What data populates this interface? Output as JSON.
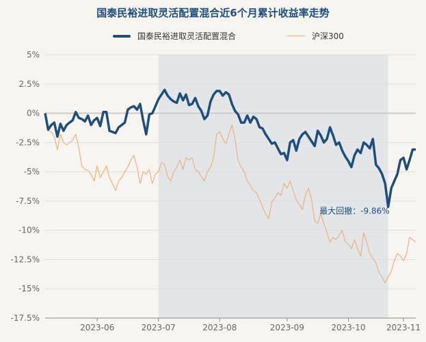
{
  "chart_data": {
    "type": "line",
    "title": "国泰民裕进取灵活配置混合近6个月累计收益率走势",
    "xlabel": "",
    "ylabel": "",
    "ylim": [
      -17.5,
      5
    ],
    "y_ticks": [
      "5%",
      "2.5%",
      "0%",
      "-2.5%",
      "-5%",
      "-7.5%",
      "-10%",
      "-12.5%",
      "-15%",
      "-17.5%"
    ],
    "y_tick_values": [
      5,
      2.5,
      0,
      -2.5,
      -5,
      -7.5,
      -10,
      -12.5,
      -15,
      -17.5
    ],
    "x_ticks": [
      "2023-06",
      "2023-07",
      "2023-08",
      "2023-09",
      "2023-10",
      "2023-11"
    ],
    "x_tick_index": [
      17,
      37,
      57,
      79,
      99,
      117
    ],
    "grid": true,
    "legend_position": "top",
    "series": [
      {
        "name": "国泰民裕进取灵活配置混合",
        "color": "#1f4e79",
        "values": [
          0.0,
          -1.4,
          -1.0,
          -0.8,
          -2.0,
          -0.9,
          -1.5,
          -1.0,
          -0.8,
          -0.6,
          0.1,
          -0.4,
          -0.5,
          -0.7,
          -0.2,
          -1.0,
          -0.6,
          -0.4,
          -1.1,
          0.1,
          0.1,
          -1.5,
          -1.6,
          -1.7,
          -1.2,
          -1.0,
          -0.8,
          0.3,
          0.5,
          0.6,
          0.3,
          0.8,
          -0.6,
          -1.8,
          -0.1,
          0.0,
          0.6,
          1.2,
          1.6,
          2.0,
          1.5,
          1.2,
          1.0,
          0.9,
          1.7,
          1.1,
          1.6,
          0.7,
          0.8,
          1.3,
          0.6,
          0.2,
          -0.5,
          -0.2,
          1.0,
          1.6,
          1.9,
          1.9,
          1.5,
          1.8,
          1.6,
          0.8,
          0.2,
          -0.1,
          -0.8,
          -0.8,
          -0.2,
          -0.8,
          -0.3,
          -0.5,
          -1.2,
          -1.3,
          -1.8,
          -2.2,
          -2.6,
          -2.5,
          -3.0,
          -3.5,
          -3.4,
          -4.0,
          -2.5,
          -2.3,
          -3.2,
          -2.2,
          -1.8,
          -1.6,
          -2.0,
          -2.4,
          -2.8,
          -1.5,
          -1.9,
          -2.5,
          -2.2,
          -1.2,
          -1.9,
          -2.7,
          -2.5,
          -3.2,
          -3.7,
          -4.1,
          -4.6,
          -3.6,
          -3.1,
          -3.4,
          -2.5,
          -2.7,
          -3.0,
          -2.2,
          -4.4,
          -4.7,
          -5.2,
          -6.0,
          -8.0,
          -6.4,
          -5.8,
          -5.2,
          -4.0,
          -3.8,
          -4.8,
          -4.0,
          -3.1,
          -3.1
        ]
      },
      {
        "name": "沪深300",
        "color": "#e8b182",
        "values": [
          0.0,
          -1.5,
          -1.6,
          -2.0,
          -3.1,
          -1.8,
          -2.5,
          -2.7,
          -2.5,
          -2.3,
          -1.8,
          -3.0,
          -4.5,
          -4.8,
          -4.9,
          -5.2,
          -5.8,
          -4.5,
          -5.5,
          -5.0,
          -4.5,
          -5.5,
          -6.0,
          -6.6,
          -5.8,
          -5.5,
          -5.0,
          -4.6,
          -4.0,
          -3.6,
          -4.6,
          -6.0,
          -5.0,
          -5.2,
          -4.8,
          -6.0,
          -5.2,
          -5.0,
          -4.2,
          -4.4,
          -5.4,
          -5.8,
          -5.0,
          -4.6,
          -4.0,
          -4.8,
          -3.8,
          -4.0,
          -3.8,
          -4.8,
          -5.0,
          -5.4,
          -5.8,
          -5.0,
          -4.6,
          -3.8,
          -1.8,
          -1.6,
          -2.2,
          -2.6,
          -1.8,
          -1.0,
          -2.2,
          -4.0,
          -4.6,
          -5.0,
          -5.8,
          -6.2,
          -6.6,
          -6.8,
          -7.4,
          -8.0,
          -8.6,
          -9.0,
          -7.6,
          -7.2,
          -6.8,
          -7.0,
          -6.0,
          -6.4,
          -5.8,
          -6.6,
          -7.4,
          -7.8,
          -8.2,
          -7.0,
          -6.4,
          -7.4,
          -9.2,
          -9.4,
          -8.6,
          -9.4,
          -10.2,
          -11.0,
          -10.6,
          -10.8,
          -10.4,
          -10.0,
          -11.0,
          -11.2,
          -11.6,
          -10.8,
          -11.6,
          -12.2,
          -10.2,
          -11.0,
          -12.0,
          -12.4,
          -12.8,
          -13.6,
          -14.0,
          -14.5,
          -14.0,
          -13.5,
          -12.6,
          -12.0,
          -12.2,
          -12.6,
          -12.0,
          -10.6,
          -10.8,
          -11.0
        ]
      }
    ],
    "max_drawdown_label": "最大回撤：-9.86%",
    "shaded_range_index": [
      37,
      112
    ]
  },
  "colors": {
    "background": "#f8f5f0",
    "grid": "#dddddd",
    "zero_line": "#cccccc",
    "shade": "#e3e6e8"
  }
}
